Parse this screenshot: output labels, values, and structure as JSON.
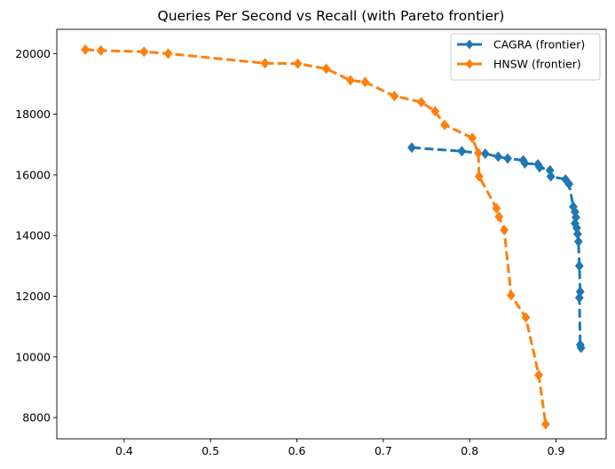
{
  "chart_data": {
    "type": "line",
    "title": "Queries Per Second vs Recall (with Pareto frontier)",
    "xlabel": "",
    "ylabel": "",
    "xlim": [
      0.322,
      0.958
    ],
    "ylim": [
      7300,
      20800
    ],
    "xticks": [
      0.4,
      0.5,
      0.6,
      0.7,
      0.8,
      0.9
    ],
    "xtick_labels": [
      "0.4",
      "0.5",
      "0.6",
      "0.7",
      "0.8",
      "0.9"
    ],
    "yticks": [
      8000,
      10000,
      12000,
      14000,
      16000,
      18000,
      20000
    ],
    "ytick_labels": [
      "8000",
      "10000",
      "12000",
      "14000",
      "16000",
      "18000",
      "20000"
    ],
    "grid": false,
    "legend_position": "top-right",
    "series": [
      {
        "name": "CAGRA (frontier)",
        "color": "#1f77b4",
        "x": [
          0.733,
          0.791,
          0.818,
          0.833,
          0.844,
          0.862,
          0.864,
          0.879,
          0.881,
          0.893,
          0.894,
          0.911,
          0.915,
          0.92,
          0.922,
          0.923,
          0.922,
          0.924,
          0.925,
          0.926,
          0.927,
          0.928,
          0.927,
          0.928,
          0.929
        ],
        "y": [
          16900,
          16780,
          16700,
          16600,
          16540,
          16480,
          16380,
          16350,
          16250,
          16150,
          15950,
          15850,
          15700,
          14950,
          14780,
          14600,
          14400,
          14250,
          14050,
          13800,
          13000,
          12150,
          11950,
          10400,
          10300
        ]
      },
      {
        "name": "HNSW (frontier)",
        "color": "#ff7f0e",
        "x": [
          0.355,
          0.373,
          0.423,
          0.451,
          0.563,
          0.601,
          0.634,
          0.662,
          0.679,
          0.713,
          0.744,
          0.76,
          0.771,
          0.803,
          0.81,
          0.811,
          0.831,
          0.834,
          0.84,
          0.848,
          0.865,
          0.88,
          0.888
        ],
        "y": [
          20130,
          20100,
          20060,
          20000,
          19680,
          19670,
          19500,
          19120,
          19060,
          18600,
          18400,
          18100,
          17650,
          17220,
          16720,
          15950,
          14900,
          14620,
          14180,
          12030,
          11300,
          9400,
          7780
        ]
      }
    ]
  }
}
